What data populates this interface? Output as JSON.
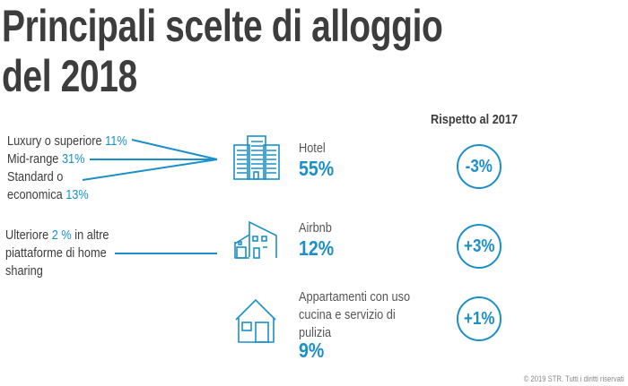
{
  "title_line1": "Principali scelte di alloggio",
  "title_line2": "del 2018",
  "comparison_header": "Rispetto al 2017",
  "hotel_breakdown": [
    {
      "label": "Luxury o superiore",
      "value": "11%"
    },
    {
      "label": "Mid-range",
      "value": "31%"
    },
    {
      "label": "Standard o",
      "label2": "economica",
      "value": "13%"
    }
  ],
  "airbnb_note": {
    "pre": "Ulteriore",
    "value": "2 %",
    "post": "in altre",
    "line2": "piattaforme di home",
    "line3": "sharing"
  },
  "categories": [
    {
      "name": "Hotel",
      "share": "55%",
      "change": "-3%",
      "icon": "office-building-icon"
    },
    {
      "name": "Airbnb",
      "share": "12%",
      "change": "+3%",
      "icon": "modern-house-icon"
    },
    {
      "name_lines": [
        "Appartamenti con uso",
        "cucina e servizio di",
        "pulizia"
      ],
      "share": "9%",
      "change": "+1%",
      "icon": "house-icon"
    }
  ],
  "footer": "© 2019 STR. Tutti i diritti riservati",
  "colors": {
    "accent": "#1a8fc9",
    "text": "#3c3c3c"
  },
  "chart_data": {
    "type": "table",
    "categories": [
      "Hotel",
      "Airbnb",
      "Appartamenti con uso cucina e servizio di pulizia"
    ],
    "values": [
      55,
      12,
      9
    ],
    "change_vs_2017": [
      -3,
      3,
      1
    ],
    "hotel_breakdown": {
      "Luxury o superiore": 11,
      "Mid-range": 31,
      "Standard o economica": 13
    },
    "other_home_sharing": 2
  }
}
